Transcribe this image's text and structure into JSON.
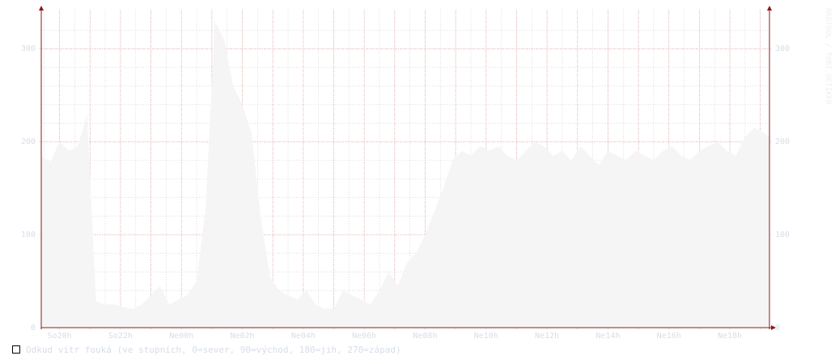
{
  "colors": {
    "area": "#f5f5f5",
    "axis": "#8b1a1a",
    "grid_major": "#f0a8a8",
    "grid_minor": "#c8c8c8",
    "text": "#d7dde8",
    "legend_border": "#000000"
  },
  "watermark": "RRDTOOL / TOBI OETIKER",
  "chart_data": {
    "type": "area",
    "y_ticks": [
      0,
      100,
      200,
      300
    ],
    "ylim": [
      0,
      335
    ],
    "right_axis": true,
    "grid": true,
    "x_labels": [
      "So20h",
      "So22h",
      "Ne00h",
      "Ne02h",
      "Ne04h",
      "Ne06h",
      "Ne08h",
      "Ne10h",
      "Ne12h",
      "Ne14h",
      "Ne16h",
      "Ne18h"
    ],
    "x_hours": [
      0,
      2,
      4,
      6,
      8,
      10,
      12,
      14,
      16,
      18,
      20,
      22
    ],
    "x_range_hours": [
      -0.6,
      23.3
    ],
    "series": [
      {
        "name": "Odkud vítr fouká (ve stupních, 0=sever, 90=východ, 180=jih, 270=západ)",
        "hours": [
          -0.6,
          -0.3,
          0.0,
          0.3,
          0.6,
          0.9,
          1.2,
          1.5,
          1.8,
          2.1,
          2.4,
          2.7,
          3.0,
          3.3,
          3.6,
          3.9,
          4.2,
          4.5,
          4.8,
          5.1,
          5.4,
          5.7,
          6.0,
          6.3,
          6.6,
          6.9,
          7.2,
          7.5,
          7.8,
          8.1,
          8.4,
          8.7,
          9.0,
          9.3,
          9.6,
          9.9,
          10.2,
          10.5,
          10.8,
          11.1,
          11.4,
          11.7,
          12.0,
          12.3,
          12.6,
          12.9,
          13.2,
          13.5,
          13.8,
          14.1,
          14.4,
          14.7,
          15.0,
          15.3,
          15.6,
          15.9,
          16.2,
          16.5,
          16.8,
          17.1,
          17.4,
          17.7,
          18.0,
          18.3,
          18.6,
          18.9,
          19.2,
          19.5,
          19.8,
          20.1,
          20.4,
          20.7,
          21.0,
          21.3,
          21.6,
          21.9,
          22.2,
          22.5,
          22.8,
          23.1,
          23.3
        ],
        "values": [
          185,
          178,
          200,
          190,
          195,
          230,
          28,
          25,
          25,
          22,
          20,
          25,
          35,
          45,
          25,
          30,
          35,
          50,
          130,
          330,
          310,
          260,
          240,
          210,
          120,
          55,
          40,
          35,
          30,
          40,
          25,
          20,
          20,
          40,
          35,
          30,
          25,
          40,
          60,
          45,
          70,
          80,
          100,
          125,
          150,
          180,
          190,
          185,
          195,
          190,
          195,
          185,
          180,
          190,
          200,
          195,
          185,
          190,
          180,
          195,
          185,
          175,
          190,
          185,
          180,
          190,
          185,
          180,
          190,
          195,
          185,
          180,
          190,
          195,
          200,
          190,
          185,
          205,
          215,
          210,
          205
        ]
      }
    ]
  }
}
